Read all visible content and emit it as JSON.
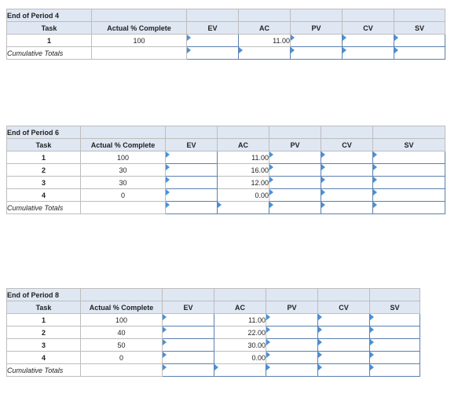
{
  "tables": [
    {
      "title": "End of Period 4",
      "headers": [
        "Task",
        "Actual % Complete",
        "EV",
        "AC",
        "PV",
        "CV",
        "SV"
      ],
      "rows": [
        {
          "task": "1",
          "complete": "100",
          "ac": "11.00"
        }
      ],
      "totals_label": "Cumulative Totals"
    },
    {
      "title": "End of Period 6",
      "headers": [
        "Task",
        "Actual % Complete",
        "EV",
        "AC",
        "PV",
        "CV",
        "SV"
      ],
      "rows": [
        {
          "task": "1",
          "complete": "100",
          "ac": "11.00"
        },
        {
          "task": "2",
          "complete": "30",
          "ac": "16.00"
        },
        {
          "task": "3",
          "complete": "30",
          "ac": "12.00"
        },
        {
          "task": "4",
          "complete": "0",
          "ac": "0.00"
        }
      ],
      "totals_label": "Cumulative Totals"
    },
    {
      "title": "End of Period 8",
      "headers": [
        "Task",
        "Actual % Complete",
        "EV",
        "AC",
        "PV",
        "CV",
        "SV"
      ],
      "rows": [
        {
          "task": "1",
          "complete": "100",
          "ac": "11.00"
        },
        {
          "task": "2",
          "complete": "40",
          "ac": "22.00"
        },
        {
          "task": "3",
          "complete": "50",
          "ac": "30.00"
        },
        {
          "task": "4",
          "complete": "0",
          "ac": "0.00"
        }
      ],
      "totals_label": "Cumulative Totals"
    }
  ]
}
